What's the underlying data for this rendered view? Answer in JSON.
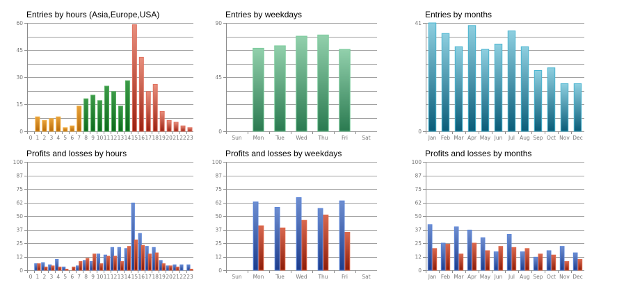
{
  "colors": {
    "grid": "#a0a0a0",
    "axis": "#8c8c8c",
    "asia_top": "#e8a23a",
    "asia_bottom": "#b86a08",
    "asia_stroke": "#f2ad40",
    "europe_top": "#3c9a48",
    "europe_bottom": "#0d6a1c",
    "europe_stroke": "#55b060",
    "usa_top": "#e8907e",
    "usa_bottom": "#9a2010",
    "usa_stroke": "#e0705e",
    "week_top": "#92d0ac",
    "week_bottom": "#2a7a50",
    "week_stroke": "#7acc9c",
    "month_top": "#8ecfe0",
    "month_bottom": "#0a5c78",
    "month_stroke": "#48b4d0",
    "profit_top": "#6e8ed0",
    "profit_bottom": "#1c3c8c",
    "profit_stroke": "#5a84d8",
    "loss_top": "#d86850",
    "loss_bottom": "#8c1c08",
    "loss_stroke": "#e06848"
  },
  "chart_data": [
    {
      "id": "entries-hours",
      "type": "bar",
      "title": "Entries by hours (Asia,Europe,USA)",
      "categories": [
        "0",
        "1",
        "2",
        "3",
        "4",
        "5",
        "6",
        "7",
        "8",
        "9",
        "10",
        "11",
        "12",
        "13",
        "14",
        "15",
        "16",
        "17",
        "18",
        "19",
        "20",
        "21",
        "22",
        "23"
      ],
      "values": [
        0,
        8,
        6,
        7,
        8,
        2,
        3,
        14,
        18,
        20,
        17,
        25,
        22,
        14,
        28,
        59,
        41,
        22,
        26,
        11,
        6,
        5,
        3,
        2
      ],
      "groups": [
        "asia",
        "asia",
        "asia",
        "asia",
        "asia",
        "asia",
        "asia",
        "asia",
        "europe",
        "europe",
        "europe",
        "europe",
        "europe",
        "europe",
        "europe",
        "usa",
        "usa",
        "usa",
        "usa",
        "usa",
        "usa",
        "usa",
        "usa",
        "usa"
      ],
      "ylim": [
        0,
        60
      ],
      "yticks": [
        "0",
        "15",
        "30",
        "45",
        "60"
      ],
      "grid_lines": 8,
      "xlabel": "",
      "ylabel": "",
      "grid": true
    },
    {
      "id": "entries-weekdays",
      "type": "bar",
      "title": "Entries by weekdays",
      "categories": [
        "Sun",
        "Mon",
        "Tue",
        "Wed",
        "Thu",
        "Fri",
        "Sat"
      ],
      "values": [
        0,
        69,
        71,
        79,
        80,
        68,
        0
      ],
      "ylim": [
        0,
        90
      ],
      "yticks": [
        "0",
        "45",
        "90"
      ],
      "grid_lines": 8,
      "xlabel": "",
      "ylabel": "",
      "grid": true
    },
    {
      "id": "entries-months",
      "type": "bar",
      "title": "Entries by months",
      "categories": [
        "Jan",
        "Feb",
        "Mar",
        "Apr",
        "May",
        "Jun",
        "Jul",
        "Aug",
        "Sep",
        "Oct",
        "Nov",
        "Dec"
      ],
      "values": [
        41,
        37,
        32,
        40,
        31,
        33,
        38,
        32,
        23,
        24,
        18,
        18
      ],
      "ylim": [
        0,
        41
      ],
      "yticks": [
        "0",
        "41"
      ],
      "grid_lines": 8,
      "xlabel": "",
      "ylabel": "",
      "grid": true
    },
    {
      "id": "pl-hours",
      "type": "bar",
      "title": "Profits and losses by hours",
      "categories": [
        "0",
        "1",
        "2",
        "3",
        "4",
        "5",
        "6",
        "7",
        "8",
        "9",
        "10",
        "11",
        "12",
        "13",
        "14",
        "15",
        "16",
        "17",
        "18",
        "19",
        "20",
        "21",
        "22",
        "23"
      ],
      "series": [
        {
          "name": "Profits",
          "values": [
            0,
            6,
            7,
            5,
            10,
            3,
            0,
            4,
            9,
            8,
            15,
            14,
            21,
            21,
            20,
            62,
            34,
            22,
            21,
            9,
            4,
            5,
            5,
            5
          ]
        },
        {
          "name": "Losses",
          "values": [
            0,
            6,
            3,
            4,
            3,
            1,
            3,
            8,
            11,
            15,
            6,
            13,
            13,
            8,
            22,
            28,
            23,
            15,
            16,
            6,
            4,
            3,
            0,
            1
          ]
        }
      ],
      "ylim": [
        0,
        100
      ],
      "yticks": [
        "0",
        "12",
        "25",
        "37",
        "50",
        "62",
        "75",
        "87",
        "100"
      ],
      "grid_lines": 8,
      "xlabel": "",
      "ylabel": "",
      "grid": true
    },
    {
      "id": "pl-weekdays",
      "type": "bar",
      "title": "Profits and losses by weekdays",
      "categories": [
        "Sun",
        "Mon",
        "Tue",
        "Wed",
        "Thu",
        "Fri",
        "Sat"
      ],
      "series": [
        {
          "name": "Profits",
          "values": [
            0,
            63,
            58,
            67,
            57,
            64,
            0
          ]
        },
        {
          "name": "Losses",
          "values": [
            0,
            41,
            39,
            46,
            51,
            35,
            0
          ]
        }
      ],
      "ylim": [
        0,
        100
      ],
      "yticks": [
        "0",
        "12",
        "25",
        "37",
        "50",
        "62",
        "75",
        "87",
        "100"
      ],
      "grid_lines": 8,
      "xlabel": "",
      "ylabel": "",
      "grid": true
    },
    {
      "id": "pl-months",
      "type": "bar",
      "title": "Profits and losses by months",
      "categories": [
        "Jan",
        "Feb",
        "Mar",
        "Apr",
        "May",
        "Jun",
        "Jul",
        "Aug",
        "Sep",
        "Oct",
        "Nov",
        "Dec"
      ],
      "series": [
        {
          "name": "Profits",
          "values": [
            42,
            25,
            40,
            37,
            30,
            17,
            33,
            17,
            12,
            18,
            22,
            16
          ]
        },
        {
          "name": "Losses",
          "values": [
            20,
            24,
            15,
            25,
            18,
            22,
            21,
            20,
            15,
            14,
            8,
            10
          ]
        }
      ],
      "ylim": [
        0,
        100
      ],
      "yticks": [
        "0",
        "12",
        "25",
        "37",
        "50",
        "62",
        "75",
        "87",
        "100"
      ],
      "grid_lines": 8,
      "xlabel": "",
      "ylabel": "",
      "grid": true
    }
  ]
}
